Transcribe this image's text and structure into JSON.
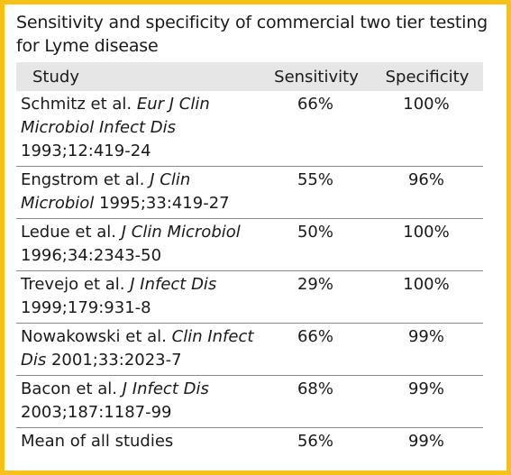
{
  "title": "Sensitivity and specificity of commercial two tier testing for Lyme disease",
  "columns": {
    "study": "Study",
    "sensitivity": "Sensitivity",
    "specificity": "Specificity"
  },
  "rows": [
    {
      "author": "Schmitz et al.",
      "journal": "Eur J Clin Microbiol Infect Dis",
      "citation": "1993;12:419-24",
      "sensitivity": "66%",
      "specificity": "100%"
    },
    {
      "author": "Engstrom et al.",
      "journal": "J Clin Microbiol",
      "citation": "1995;33:419-27",
      "sensitivity": "55%",
      "specificity": "96%"
    },
    {
      "author": "Ledue et al. ",
      "journal": "J Clin Microbiol",
      "citation": "1996;34:2343-50",
      "sensitivity": "50%",
      "specificity": "100%"
    },
    {
      "author": "Trevejo et al.",
      "journal": "J Infect Dis",
      "citation": "1999;179:931-8",
      "sensitivity": "29%",
      "specificity": "100%"
    },
    {
      "author": "Nowakowski et al.",
      "journal": "Clin Infect Dis",
      "citation": "2001;33:2023-7",
      "sensitivity": "66%",
      "specificity": "99%"
    },
    {
      "author": "Bacon et al.",
      "journal": "J Infect Dis",
      "citation": "2003;187:1187-99",
      "sensitivity": "68%",
      "specificity": "99%"
    },
    {
      "author": "Mean of all studies",
      "journal": "",
      "citation": "",
      "sensitivity": "56%",
      "specificity": "99%"
    }
  ]
}
